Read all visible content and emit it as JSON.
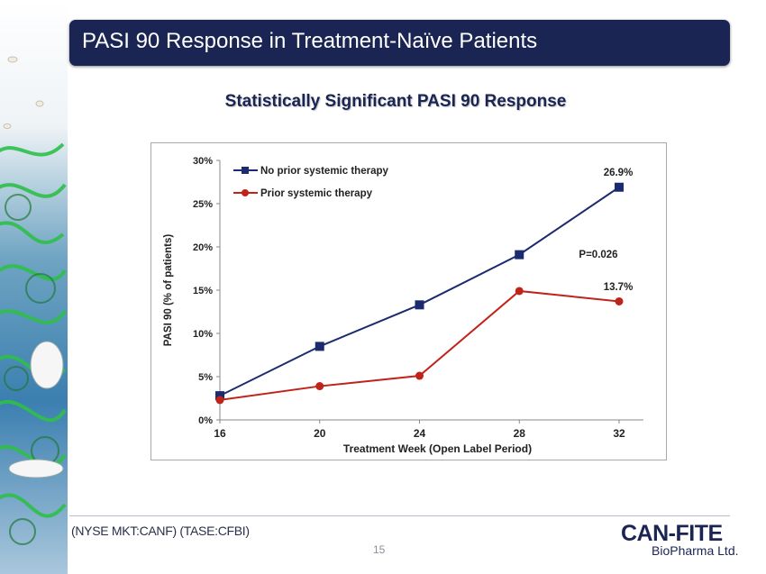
{
  "slide": {
    "title": "PASI 90 Response in Treatment-Naïve Patients",
    "subtitle": "Statistically Significant PASI 90 Response",
    "page_number": "15",
    "footer_ticker": "(NYSE MKT:CANF)  (TASE:CFBI)",
    "logo_main": "CAN-FITE",
    "logo_sub": "BioPharma Ltd.",
    "logo_ghost": "15"
  },
  "colors": {
    "title_bar": "#1b2554",
    "series_no_prior": "#1b2b6e",
    "series_prior": "#c0231a"
  },
  "chart_data": {
    "type": "line",
    "x": [
      16,
      20,
      24,
      28,
      32
    ],
    "xlabel": "Treatment Week (Open Label Period)",
    "ylabel": "PASI 90 (% of patients)",
    "ylim": [
      0,
      30
    ],
    "y_ticks": [
      "0%",
      "5%",
      "10%",
      "15%",
      "20%",
      "25%",
      "30%"
    ],
    "x_ticks": [
      "16",
      "20",
      "24",
      "28",
      "32"
    ],
    "grid": false,
    "legend_position": "top-left",
    "series": [
      {
        "name": "No prior systemic therapy",
        "values": [
          2.8,
          8.5,
          13.3,
          19.1,
          26.9
        ],
        "marker": "square"
      },
      {
        "name": "Prior systemic therapy",
        "values": [
          2.3,
          3.9,
          5.1,
          14.9,
          13.7
        ],
        "marker": "circle"
      }
    ],
    "annotations": {
      "end_no_prior": "26.9%",
      "end_prior": "13.7%",
      "p_value": "P=0.026"
    }
  }
}
